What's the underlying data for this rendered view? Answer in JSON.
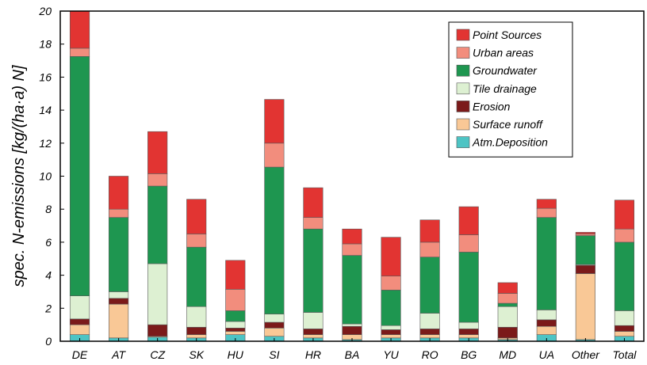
{
  "chart_data": {
    "type": "bar",
    "stacked": true,
    "title": "",
    "xlabel": "",
    "ylabel": "spec. N-emissions [kg/(ha·a) N]",
    "ylim": [
      0,
      20
    ],
    "yticks": [
      0,
      2,
      4,
      6,
      8,
      10,
      12,
      14,
      16,
      18,
      20
    ],
    "grid": false,
    "legend_position": "top-right",
    "categories": [
      "DE",
      "AT",
      "CZ",
      "SK",
      "HU",
      "SI",
      "HR",
      "BA",
      "YU",
      "RO",
      "BG",
      "MD",
      "UA",
      "Other",
      "Total"
    ],
    "series": [
      {
        "name": "Atm.Deposition",
        "color": "#4dc4c4",
        "values": [
          0.4,
          0.2,
          0.25,
          0.2,
          0.4,
          0.3,
          0.2,
          0.1,
          0.2,
          0.2,
          0.2,
          0.1,
          0.4,
          0.1,
          0.3
        ]
      },
      {
        "name": "Surface runoff",
        "color": "#f9c896",
        "values": [
          0.6,
          2.05,
          0.05,
          0.2,
          0.2,
          0.5,
          0.2,
          0.3,
          0.2,
          0.2,
          0.2,
          0.1,
          0.5,
          4.0,
          0.3
        ]
      },
      {
        "name": "Erosion",
        "color": "#7b1a1a",
        "values": [
          0.35,
          0.35,
          0.7,
          0.45,
          0.2,
          0.35,
          0.35,
          0.5,
          0.3,
          0.35,
          0.35,
          0.65,
          0.4,
          0.5,
          0.35
        ]
      },
      {
        "name": "Tile drainage",
        "color": "#ddf0d2",
        "values": [
          1.4,
          0.4,
          3.7,
          1.25,
          0.4,
          0.5,
          1.0,
          0.15,
          0.25,
          0.95,
          0.4,
          1.25,
          0.6,
          0.05,
          0.9
        ]
      },
      {
        "name": "Groundwater",
        "color": "#1e9650",
        "values": [
          14.5,
          4.5,
          4.7,
          3.6,
          0.65,
          8.9,
          5.05,
          4.15,
          2.15,
          3.4,
          4.25,
          0.2,
          5.6,
          1.75,
          4.15
        ]
      },
      {
        "name": "Urban areas",
        "color": "#f28d7d",
        "values": [
          0.5,
          0.5,
          0.75,
          0.8,
          1.3,
          1.45,
          0.7,
          0.7,
          0.85,
          0.9,
          1.05,
          0.6,
          0.55,
          0.1,
          0.8
        ]
      },
      {
        "name": "Point Sources",
        "color": "#e23432",
        "values": [
          2.8,
          2.0,
          2.55,
          2.1,
          1.75,
          2.65,
          1.8,
          0.9,
          2.35,
          1.35,
          1.7,
          0.65,
          0.55,
          0.1,
          1.75
        ]
      }
    ]
  }
}
